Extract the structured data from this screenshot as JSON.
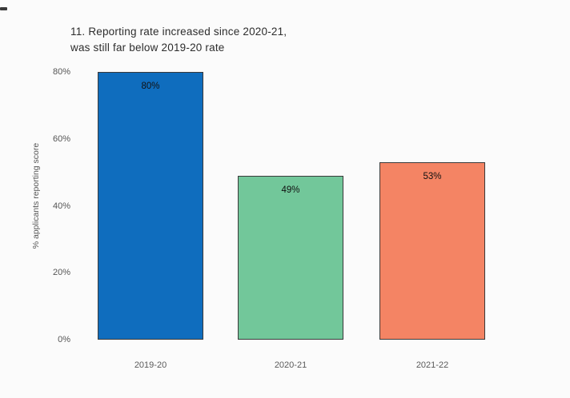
{
  "title": {
    "line1": "11. Reporting rate increased since 2020-21,",
    "line2": "was still far below 2019-20 rate"
  },
  "chart_data": {
    "type": "bar",
    "title": "11. Reporting rate increased since 2020-21, was still far below 2019-20 rate",
    "categories": [
      "2019-20",
      "2020-21",
      "2021-22"
    ],
    "values": [
      80,
      49,
      53
    ],
    "value_labels": [
      "80%",
      "49%",
      "53%"
    ],
    "xlabel": "",
    "ylabel": "% applicants reporting score",
    "ylim": [
      0,
      80
    ],
    "yticks": [
      0,
      20,
      40,
      60,
      80
    ],
    "ytick_suffix": "%",
    "grid": false,
    "legend": "none",
    "bar_colors": [
      "#0f6dbe",
      "#72c79a",
      "#f48464"
    ],
    "bar_edge_color": "#3a3a3a",
    "background_color": "#fbfbfb"
  }
}
